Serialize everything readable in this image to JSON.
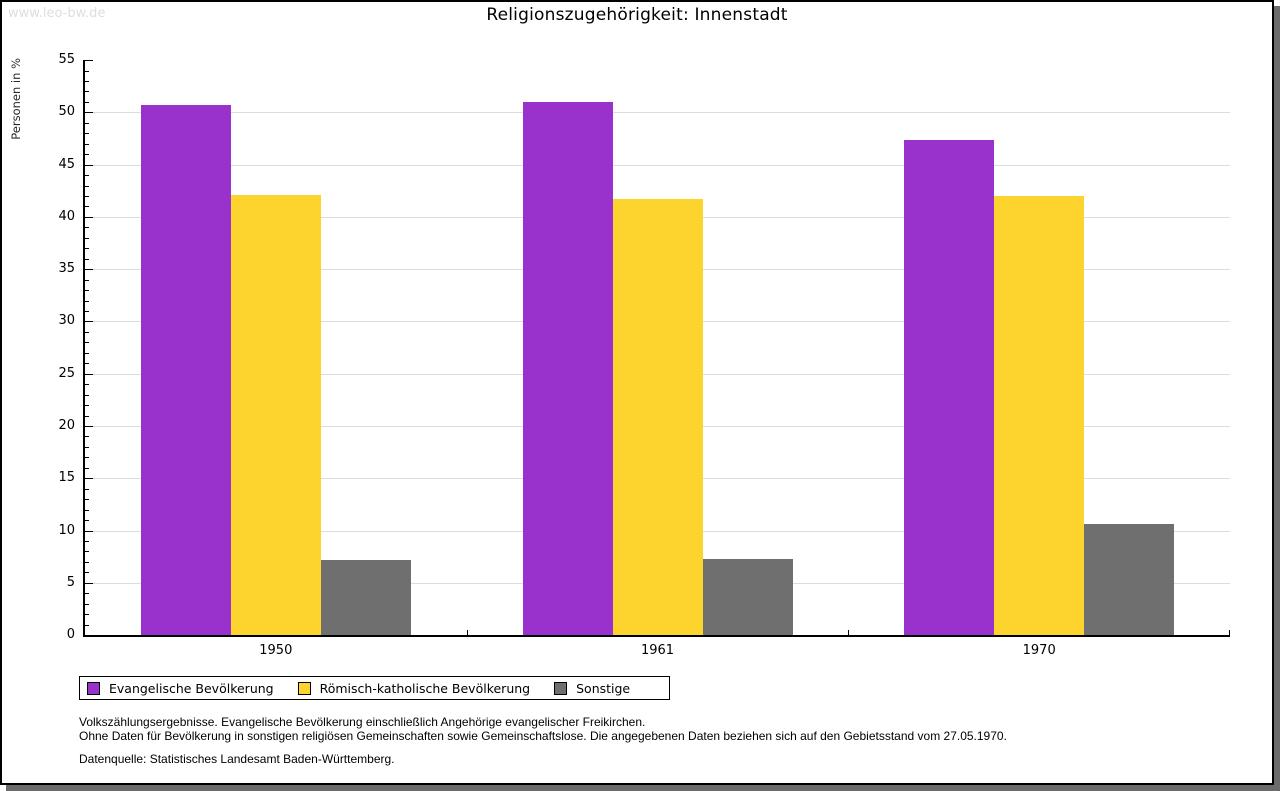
{
  "watermark": "www.leo-bw.de",
  "chart_data": {
    "type": "bar",
    "title": "Religionszugehörigkeit: Innenstadt",
    "xlabel": "",
    "ylabel": "Personen in %",
    "ylim": [
      0,
      55
    ],
    "ytick_step": 5,
    "ytick_minor_step": 1,
    "grid": true,
    "legend_position": "bottom-left",
    "categories": [
      "1950",
      "1961",
      "1970"
    ],
    "series": [
      {
        "name": "Evangelische Bevölkerung",
        "color": "#9932cc",
        "values": [
          50.7,
          51.0,
          47.4
        ]
      },
      {
        "name": "Römisch-katholische Bevölkerung",
        "color": "#fdd32d",
        "values": [
          42.1,
          41.7,
          42.0
        ]
      },
      {
        "name": "Sonstige",
        "color": "#6f6f6f",
        "values": [
          7.2,
          7.3,
          10.6
        ]
      }
    ]
  },
  "footnotes": {
    "line1": "Volkszählungsergebnisse. Evangelische Bevölkerung einschließlich Angehörige evangelischer Freikirchen.",
    "line2": "Ohne Daten für Bevölkerung in sonstigen religiösen Gemeinschaften sowie Gemeinschaftslose. Die angegebenen Daten beziehen sich auf den Gebietsstand vom 27.05.1970.",
    "source": "Datenquelle: Statistisches Landesamt Baden-Württemberg."
  },
  "colors": {
    "gridline": "#dcdcdc",
    "axis": "#000000",
    "watermark": "#dedede",
    "page_shadow": "#6b6b6b"
  }
}
